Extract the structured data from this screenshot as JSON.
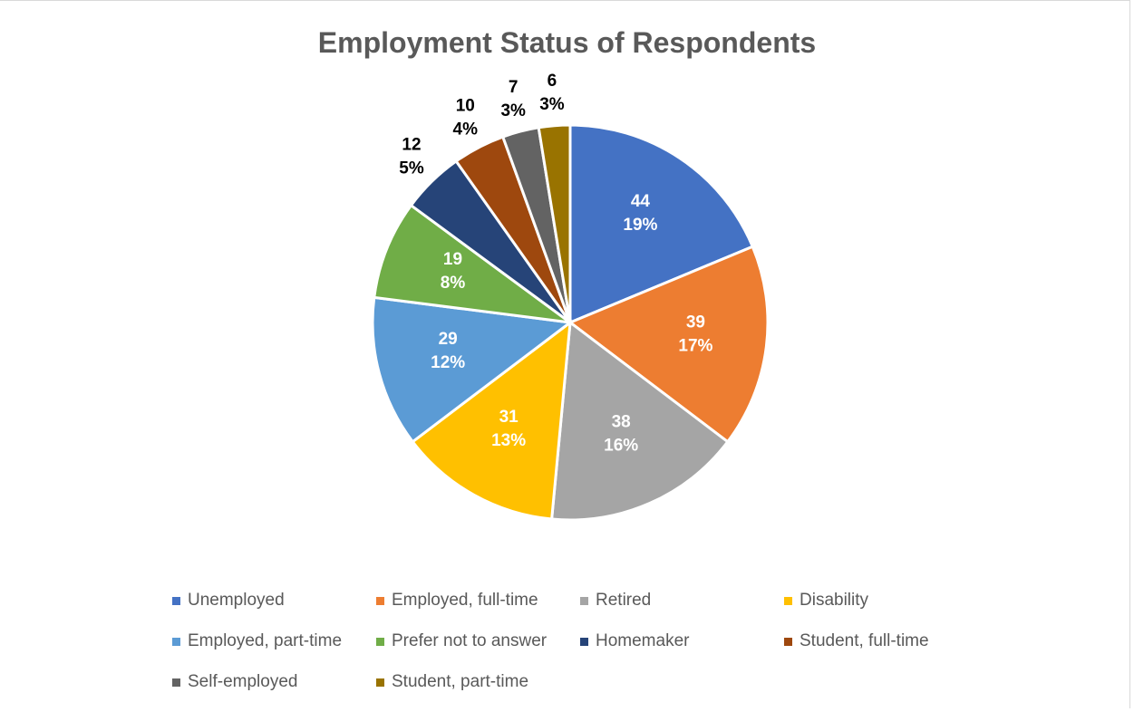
{
  "chart_data": {
    "type": "pie",
    "title": "Employment Status of Respondents",
    "categories": [
      "Unemployed",
      "Employed, full-time",
      "Retired",
      "Disability",
      "Employed, part-time",
      "Prefer not to answer",
      "Homemaker",
      "Student, full-time",
      "Self-employed",
      "Student, part-time"
    ],
    "values": [
      44,
      39,
      38,
      31,
      29,
      19,
      12,
      10,
      7,
      6
    ],
    "percent_labels": [
      "19%",
      "17%",
      "16%",
      "13%",
      "12%",
      "8%",
      "5%",
      "4%",
      "3%",
      "3%"
    ],
    "colors": [
      "#4472C4",
      "#ED7D31",
      "#A5A5A5",
      "#FFC000",
      "#5B9BD5",
      "#70AD47",
      "#264478",
      "#9E480E",
      "#636363",
      "#997300"
    ],
    "data_label_colors": [
      "#ffffff",
      "#ffffff",
      "#ffffff",
      "#ffffff",
      "#ffffff",
      "#ffffff",
      "#000000",
      "#000000",
      "#000000",
      "#000000"
    ],
    "legend_position": "bottom"
  }
}
